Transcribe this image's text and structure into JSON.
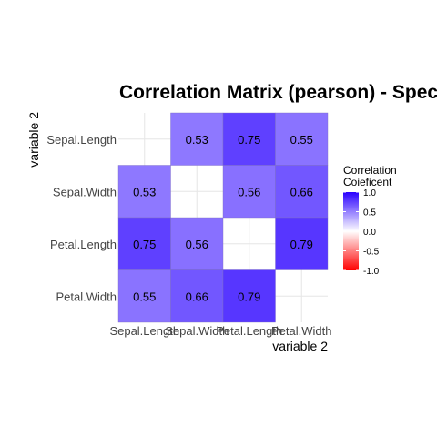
{
  "chart_data": {
    "type": "heatmap",
    "title": "Correlation Matrix (pearson) - Species",
    "xlabel": "variable 2",
    "ylabel": "variable 2",
    "x_categories": [
      "Sepal.Length",
      "Sepal.Width",
      "Petal.Length",
      "Petal.Width"
    ],
    "y_categories": [
      "Sepal.Length",
      "Sepal.Width",
      "Petal.Length",
      "Petal.Width"
    ],
    "cells": [
      {
        "x": "Sepal.Width",
        "y": "Sepal.Length",
        "value": 0.53,
        "label": "0.53"
      },
      {
        "x": "Petal.Length",
        "y": "Sepal.Length",
        "value": 0.75,
        "label": "0.75"
      },
      {
        "x": "Petal.Width",
        "y": "Sepal.Length",
        "value": 0.55,
        "label": "0.55"
      },
      {
        "x": "Sepal.Length",
        "y": "Sepal.Width",
        "value": 0.53,
        "label": "0.53"
      },
      {
        "x": "Petal.Length",
        "y": "Sepal.Width",
        "value": 0.56,
        "label": "0.56"
      },
      {
        "x": "Petal.Width",
        "y": "Sepal.Width",
        "value": 0.66,
        "label": "0.66"
      },
      {
        "x": "Sepal.Length",
        "y": "Petal.Length",
        "value": 0.75,
        "label": "0.75"
      },
      {
        "x": "Sepal.Width",
        "y": "Petal.Length",
        "value": 0.56,
        "label": "0.56"
      },
      {
        "x": "Petal.Width",
        "y": "Petal.Length",
        "value": 0.79,
        "label": "0.79"
      },
      {
        "x": "Sepal.Length",
        "y": "Petal.Width",
        "value": 0.55,
        "label": "0.55"
      },
      {
        "x": "Sepal.Width",
        "y": "Petal.Width",
        "value": 0.66,
        "label": "0.66"
      },
      {
        "x": "Petal.Length",
        "y": "Petal.Width",
        "value": 0.79,
        "label": "0.79"
      }
    ],
    "legend": {
      "title_lines": [
        "Correlation",
        "Coieficent"
      ],
      "ticks": [
        {
          "value": 1.0,
          "label": "1.0"
        },
        {
          "value": 0.5,
          "label": "0.5"
        },
        {
          "value": 0.0,
          "label": "0.0"
        },
        {
          "value": -0.5,
          "label": "-0.5"
        },
        {
          "value": -1.0,
          "label": "-1.0"
        }
      ],
      "limits": [
        -1.0,
        1.0
      ],
      "position": "right"
    },
    "colors": {
      "low": "#ff0000",
      "mid": "#ffffff",
      "high": "#2a00ff",
      "grid": "#e6e6e6",
      "text": "#000000",
      "tick": "#444444"
    },
    "grid": true
  }
}
